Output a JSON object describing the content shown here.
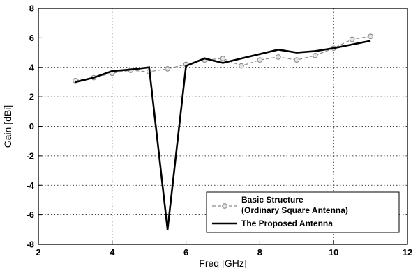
{
  "chart_data": {
    "type": "line",
    "title": "",
    "xlabel": "Freq [GHz]",
    "ylabel": "Gain [dBi]",
    "xlim": [
      2,
      12
    ],
    "ylim": [
      -8,
      8
    ],
    "xticks": [
      2,
      4,
      6,
      8,
      10,
      12
    ],
    "yticks": [
      -8,
      -6,
      -4,
      -2,
      0,
      2,
      4,
      6,
      8
    ],
    "grid": true,
    "legend_position": "bottom-right",
    "series": [
      {
        "name": "Basic Structure\n (Ordinary Square  Antenna)",
        "name_lines": [
          "Basic Structure",
          " (Ordinary Square  Antenna)"
        ],
        "style": "dashed-circle-markers",
        "color": "#8a8a8a",
        "x": [
          3,
          3.5,
          4,
          4.5,
          5,
          5.5,
          6,
          6.5,
          7,
          7.5,
          8,
          8.5,
          9,
          9.5,
          10,
          10.5,
          11
        ],
        "y": [
          3.1,
          3.3,
          3.6,
          3.8,
          3.7,
          3.9,
          4.2,
          4.5,
          4.6,
          4.1,
          4.5,
          4.7,
          4.5,
          4.8,
          5.3,
          5.9,
          6.1
        ]
      },
      {
        "name": "The Proposed  Antenna",
        "style": "solid-thick",
        "color": "#000000",
        "x": [
          3,
          3.5,
          4,
          4.5,
          5,
          5.5,
          6,
          6.5,
          7,
          7.5,
          8,
          8.5,
          9,
          9.5,
          10,
          10.5,
          11
        ],
        "y": [
          3.0,
          3.3,
          3.75,
          3.85,
          4.0,
          -7.0,
          4.1,
          4.6,
          4.3,
          4.6,
          4.9,
          5.2,
          5.0,
          5.1,
          5.3,
          5.55,
          5.8
        ]
      }
    ]
  }
}
